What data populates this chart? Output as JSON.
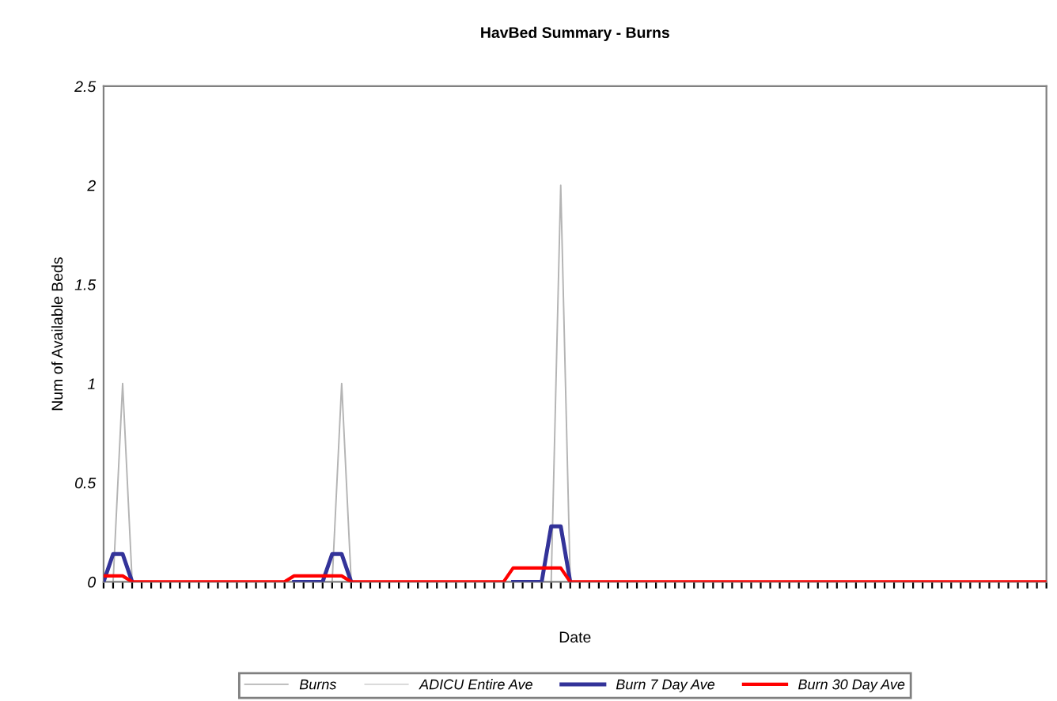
{
  "chart_data": {
    "type": "line",
    "title": "HavBed Summary - Burns",
    "xlabel": "Date",
    "ylabel": "Num of Available Beds",
    "categories": [
      null,
      null,
      null,
      null,
      null,
      null,
      null,
      null,
      null,
      null,
      null,
      null,
      null,
      null,
      null,
      null,
      null,
      null,
      null,
      null,
      null,
      null,
      null,
      null,
      null,
      null,
      null,
      null,
      null,
      null,
      null,
      null,
      null,
      null,
      null,
      null,
      null,
      null,
      null,
      null,
      null,
      null,
      null,
      null,
      null,
      null,
      null,
      null,
      null,
      null,
      null,
      null,
      null,
      null,
      null,
      null,
      null,
      null,
      null,
      null,
      null,
      null,
      null,
      null,
      null,
      null,
      null,
      null,
      null,
      null,
      null,
      null,
      null,
      null,
      null,
      null,
      null,
      null,
      null,
      null,
      null,
      null,
      null,
      null,
      null,
      null,
      null,
      null,
      null,
      null,
      null,
      null,
      null,
      null,
      null,
      null,
      null,
      null,
      null,
      null
    ],
    "series": [
      {
        "name": "Burns",
        "color": "#b4b4b4",
        "values": [
          null,
          0,
          1,
          0,
          null,
          null,
          null,
          null,
          null,
          null,
          null,
          null,
          null,
          null,
          null,
          null,
          null,
          null,
          null,
          null,
          null,
          null,
          null,
          null,
          0,
          1,
          0,
          null,
          null,
          null,
          null,
          null,
          null,
          null,
          null,
          null,
          null,
          null,
          null,
          null,
          null,
          null,
          null,
          null,
          null,
          null,
          null,
          0,
          2,
          0,
          null,
          null,
          null,
          null,
          null,
          null,
          null,
          null,
          null,
          null,
          null,
          null,
          null,
          null,
          null,
          null,
          null,
          null,
          null,
          null,
          null,
          null,
          null,
          null,
          null,
          null,
          null,
          null,
          null,
          null,
          null,
          null,
          null,
          null,
          null,
          null,
          null,
          null,
          null,
          null,
          null,
          null,
          null,
          null,
          null,
          null,
          null,
          null,
          null,
          null
        ]
      },
      {
        "name": "ADICU Entire Ave",
        "color": "#d4d4d4",
        "values": [
          null,
          null,
          null,
          null,
          null,
          null,
          null,
          null,
          null,
          null,
          null,
          null,
          null,
          null,
          null,
          null,
          null,
          null,
          null,
          null,
          null,
          null,
          null,
          null,
          null,
          null,
          null,
          null,
          null,
          null,
          null,
          null,
          null,
          null,
          null,
          null,
          null,
          null,
          null,
          null,
          null,
          null,
          null,
          null,
          null,
          null,
          null,
          null,
          null,
          null,
          null,
          null,
          null,
          null,
          null,
          null,
          null,
          null,
          null,
          null,
          null,
          null,
          null,
          null,
          null,
          null,
          null,
          null,
          null,
          null,
          null,
          null,
          null,
          null,
          null,
          null,
          null,
          null,
          null,
          null,
          null,
          null,
          null,
          null,
          null,
          null,
          null,
          null,
          null,
          null,
          null,
          null,
          null,
          null,
          null,
          null,
          null,
          null,
          null,
          null
        ]
      },
      {
        "name": "Burn 7 Day Ave",
        "color": "#333399",
        "values": [
          0,
          0.14,
          0.14,
          0,
          null,
          null,
          null,
          null,
          null,
          null,
          null,
          null,
          null,
          null,
          null,
          null,
          null,
          null,
          null,
          null,
          0,
          0,
          0,
          0,
          0.14,
          0.14,
          0,
          null,
          null,
          null,
          null,
          null,
          null,
          null,
          null,
          null,
          null,
          null,
          null,
          null,
          null,
          null,
          null,
          0,
          0,
          0,
          0,
          0.28,
          0.28,
          0,
          null,
          null,
          null,
          null,
          null,
          null,
          null,
          null,
          null,
          null,
          null,
          null,
          null,
          null,
          null,
          null,
          null,
          null,
          null,
          null,
          null,
          null,
          null,
          null,
          null,
          null,
          null,
          null,
          null,
          null,
          null,
          null,
          null,
          null,
          null,
          null,
          null,
          null,
          null,
          null,
          null,
          null,
          null,
          null,
          null,
          null,
          null,
          null,
          null,
          null
        ]
      },
      {
        "name": "Burn 30 Day Ave",
        "color": "#ff0000",
        "values": [
          0.03,
          0.03,
          0.03,
          0,
          0,
          0,
          0,
          0,
          0,
          0,
          0,
          0,
          0,
          0,
          0,
          0,
          0,
          0,
          0,
          0,
          0.03,
          0.03,
          0.03,
          0.03,
          0.03,
          0.03,
          0,
          0,
          0,
          0,
          0,
          0,
          0,
          0,
          0,
          0,
          0,
          0,
          0,
          0,
          0,
          0,
          0,
          0.07,
          0.07,
          0.07,
          0.07,
          0.07,
          0.07,
          0,
          0,
          0,
          0,
          0,
          0,
          0,
          0,
          0,
          0,
          0,
          0,
          0,
          0,
          0,
          0,
          0,
          0,
          0,
          0,
          0,
          0,
          0,
          0,
          0,
          0,
          0,
          0,
          0,
          0,
          0,
          0,
          0,
          0,
          0,
          0,
          0,
          0,
          0,
          0,
          0,
          0,
          0,
          0,
          0,
          0,
          0,
          0,
          0,
          0,
          0
        ]
      }
    ],
    "ylim": [
      0,
      2.5
    ],
    "yticks": [
      0,
      0.5,
      1,
      1.5,
      2,
      2.5
    ],
    "grid": false,
    "legend": "bottom"
  }
}
